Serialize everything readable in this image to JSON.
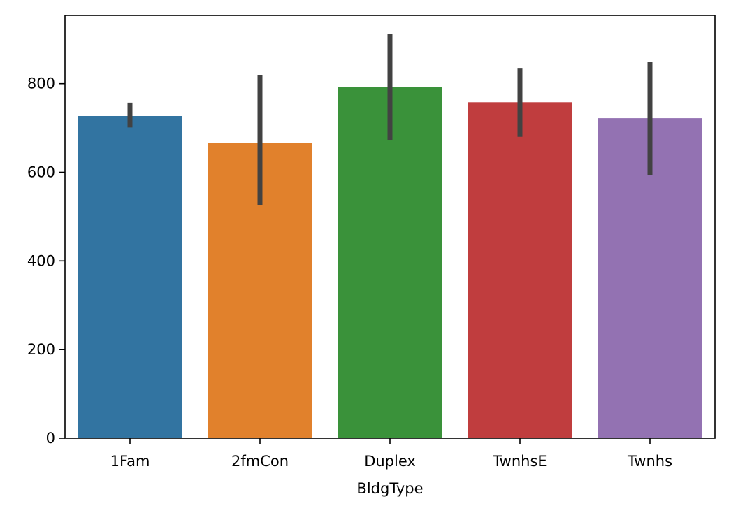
{
  "chart_data": {
    "type": "bar",
    "categories": [
      "1Fam",
      "2fmCon",
      "Duplex",
      "TwnhsE",
      "Twnhs"
    ],
    "values": [
      727,
      666,
      792,
      758,
      722
    ],
    "error_bars": [
      {
        "low": 701,
        "high": 757
      },
      {
        "low": 526,
        "high": 820
      },
      {
        "low": 672,
        "high": 912
      },
      {
        "low": 680,
        "high": 834
      },
      {
        "low": 594,
        "high": 849
      }
    ],
    "colors": [
      "#3274a1",
      "#e1812c",
      "#3a923a",
      "#c03d3e",
      "#9372b2"
    ],
    "error_bar_color": "#424242",
    "title": "",
    "xlabel": "BldgType",
    "ylabel": "",
    "ylim": [
      0,
      954
    ],
    "yticks": [
      0,
      200,
      400,
      600,
      800
    ],
    "grid": false
  }
}
